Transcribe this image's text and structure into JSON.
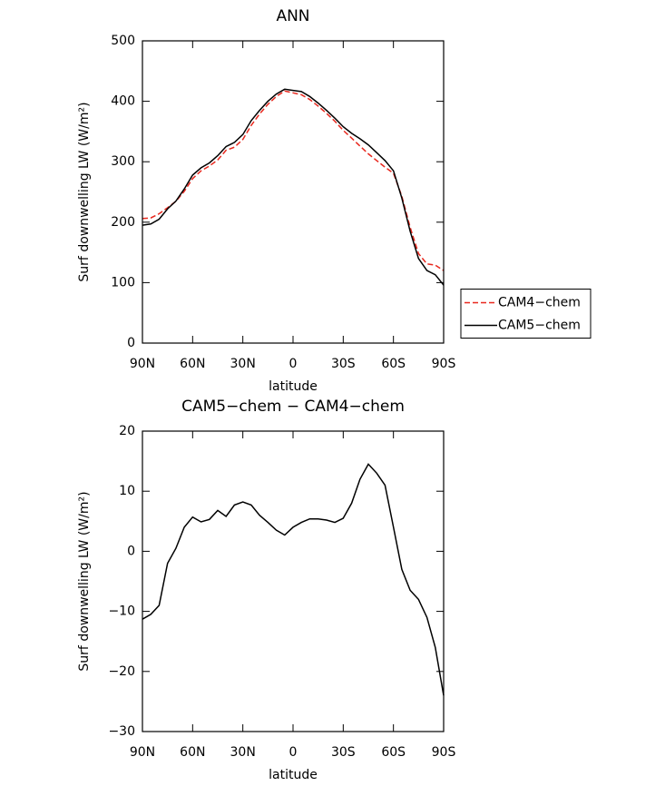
{
  "chart_data": [
    {
      "type": "line",
      "title": "ANN",
      "x_label": "latitude",
      "y_label": "Surf downwelling LW (W/m²)",
      "x": [
        90,
        85,
        80,
        75,
        70,
        65,
        60,
        55,
        50,
        45,
        40,
        35,
        30,
        25,
        20,
        15,
        10,
        5,
        0,
        -5,
        -10,
        -15,
        -20,
        -25,
        -30,
        -35,
        -40,
        -45,
        -50,
        -55,
        -60,
        -65,
        -70,
        -75,
        -80,
        -85,
        -90
      ],
      "series": [
        {
          "name": "CAM4−chem",
          "color": "#e8281e",
          "dashed": true,
          "values": [
            206,
            207,
            214,
            224,
            234.5,
            251,
            272,
            285,
            293,
            303,
            319,
            324,
            337,
            360,
            379,
            395,
            408,
            417,
            414,
            411,
            403,
            392,
            380,
            367,
            352,
            339,
            326,
            313,
            302,
            291,
            281,
            243,
            191.5,
            148,
            131,
            129,
            120
          ]
        },
        {
          "name": "CAM5−chem",
          "color": "#000000",
          "dashed": false,
          "values": [
            195,
            197,
            205,
            222,
            235,
            255,
            278,
            290,
            298,
            310,
            325,
            332,
            345,
            368,
            385,
            400,
            412,
            420,
            418,
            416,
            408,
            397,
            385,
            372,
            358,
            347,
            338,
            328,
            315,
            302,
            285,
            240,
            185,
            140,
            120,
            113,
            96
          ]
        }
      ],
      "xlim": [
        90,
        -90
      ],
      "xticks": [
        {
          "value": 90,
          "label": "90N"
        },
        {
          "value": 60,
          "label": "60N"
        },
        {
          "value": 30,
          "label": "30N"
        },
        0,
        {
          "value": -30,
          "label": "30S"
        },
        {
          "value": -60,
          "label": "60S"
        },
        {
          "value": -90,
          "label": "90S"
        }
      ],
      "ylim": [
        0,
        500
      ],
      "yticks": [
        0,
        100,
        200,
        300,
        400,
        500
      ],
      "legend": "right"
    },
    {
      "type": "line",
      "title": "CAM5−chem − CAM4−chem",
      "x_label": "latitude",
      "y_label": "Surf downwelling LW (W/m²)",
      "x": [
        90,
        85,
        80,
        75,
        70,
        65,
        60,
        55,
        50,
        45,
        40,
        35,
        30,
        25,
        20,
        15,
        10,
        5,
        0,
        -5,
        -10,
        -15,
        -20,
        -25,
        -30,
        -35,
        -40,
        -45,
        -50,
        -55,
        -60,
        -65,
        -70,
        -75,
        -80,
        -85,
        -90
      ],
      "series": [
        {
          "color": "#000000",
          "dashed": false,
          "values": [
            -11.3,
            -10.5,
            -9,
            -2,
            0.5,
            4,
            5.7,
            4.9,
            5.3,
            6.8,
            5.8,
            7.7,
            8.2,
            7.7,
            6,
            4.8,
            3.5,
            2.7,
            4,
            4.8,
            5.4,
            5.4,
            5.2,
            4.8,
            5.5,
            8,
            12,
            14.5,
            13,
            11,
            4,
            -3,
            -6.5,
            -8,
            -11,
            -16,
            -24
          ]
        }
      ],
      "xlim": [
        90,
        -90
      ],
      "xticks": [
        {
          "value": 90,
          "label": "90N"
        },
        {
          "value": 60,
          "label": "60N"
        },
        {
          "value": 30,
          "label": "30N"
        },
        0,
        {
          "value": -30,
          "label": "30S"
        },
        {
          "value": -60,
          "label": "60S"
        },
        {
          "value": -90,
          "label": "90S"
        }
      ],
      "ylim": [
        -30,
        20
      ],
      "yticks": [
        {
          "value": -30,
          "label": "−30"
        },
        {
          "value": -20,
          "label": "−20"
        },
        {
          "value": -10,
          "label": "−10"
        },
        0,
        10,
        20
      ]
    }
  ]
}
